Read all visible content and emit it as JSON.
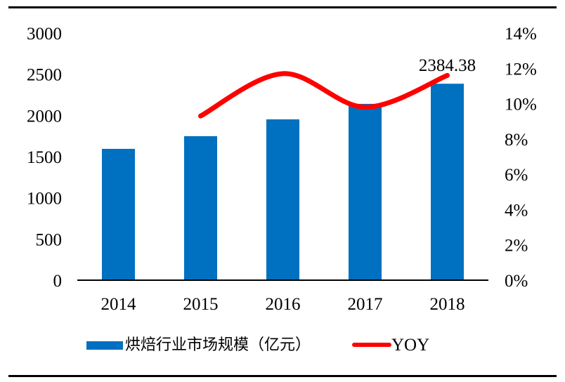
{
  "chart_data": {
    "type": "bar+line",
    "title": "",
    "categories": [
      "2014",
      "2015",
      "2016",
      "2017",
      "2018"
    ],
    "series": [
      {
        "name": "烘焙行业市场规模（亿元）",
        "type": "bar",
        "axis": "left",
        "color": "#0070C0",
        "values": [
          1594,
          1748,
          1952,
          2140,
          2384.38
        ]
      },
      {
        "name": "YOY",
        "type": "line",
        "axis": "right",
        "color": "#FF0000",
        "values": [
          null,
          9.3,
          11.7,
          9.8,
          11.6
        ]
      }
    ],
    "data_labels": [
      {
        "category": "2018",
        "series": "烘焙行业市场规模（亿元）",
        "text": "2384.38"
      }
    ],
    "left_axis": {
      "min": 0,
      "max": 3000,
      "step": 500,
      "ticks": [
        "0",
        "500",
        "1000",
        "1500",
        "2000",
        "2500",
        "3000"
      ]
    },
    "right_axis": {
      "min": 0,
      "max": 14,
      "step": 2,
      "unit": "%",
      "ticks": [
        "0%",
        "2%",
        "4%",
        "6%",
        "8%",
        "10%",
        "12%",
        "14%"
      ]
    },
    "xlabel": "",
    "ylabel": "",
    "grid": false,
    "legend_position": "bottom"
  },
  "legend": {
    "bar_label": "烘焙行业市场规模（亿元）",
    "line_label": "YOY"
  },
  "colors": {
    "bar": "#0070C0",
    "line": "#FF0000",
    "axis": "#000000"
  }
}
